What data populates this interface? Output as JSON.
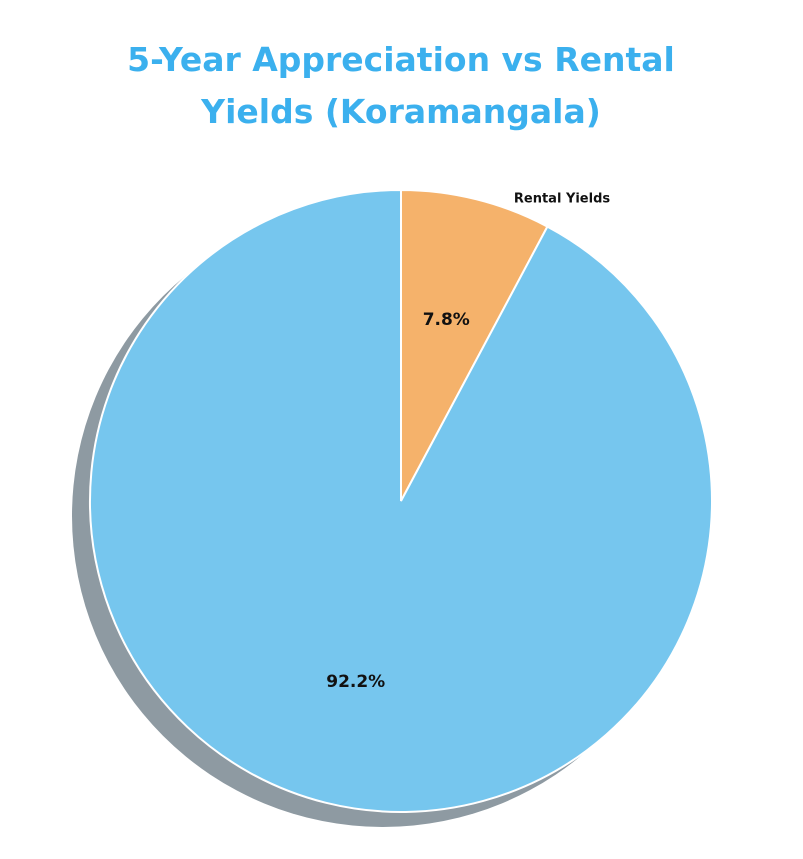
{
  "chart_data": {
    "type": "pie",
    "title": "5-Year Appreciation vs Rental Yields (Koramangala)",
    "categories": [
      "Rental Yields",
      null
    ],
    "values": [
      7.8,
      92.2
    ],
    "value_labels": [
      "7.8%",
      "92.2%"
    ],
    "colors": [
      "#f5b26b",
      "#76c6ee"
    ],
    "shadow": true
  }
}
